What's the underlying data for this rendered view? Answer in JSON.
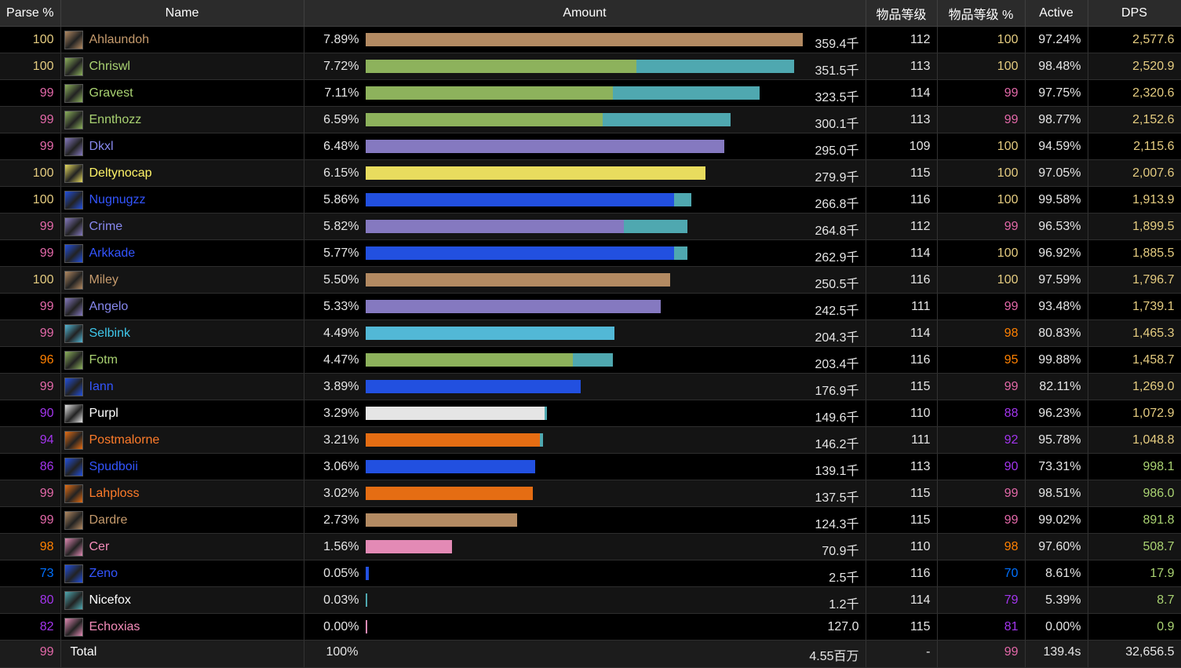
{
  "headers": {
    "parse": "Parse %",
    "name": "Name",
    "amount": "Amount",
    "ilvl": "物品等级",
    "ilvl_pct": "物品等级 %",
    "active": "Active",
    "dps": "DPS"
  },
  "colors": {
    "parse_orange": "#ff8000",
    "parse_gold": "#e5cc80",
    "parse_pink": "#e268a8",
    "parse_purple": "#a335ee",
    "parse_blue": "#0070ff",
    "warrior": "#C69B6D",
    "hunter": "#AAD372",
    "demon_hunter": "#A330C9",
    "rogue": "#FFF468",
    "mage": "#3FC7EB",
    "warlock": "#8788EE",
    "shaman": "#0070DD",
    "priest": "#FFFFFF",
    "monk": "#00FF98",
    "paladin": "#F48CBA",
    "pet_bar": "#4fa8b0"
  },
  "rows": [
    {
      "parse": "100",
      "name": "Ahlaundoh",
      "pct": "7.89%",
      "amount": "359.4千",
      "ilvl": "112",
      "ilvl_pct": "100",
      "active": "97.24%",
      "dps": "2,577.6",
      "icon": "warrior-fury-icon",
      "cls": "#C69B6D",
      "bar": "#b38a62",
      "main": 1.0,
      "pet": 0,
      "pc": "#e5cc80",
      "ic": "#e5cc80",
      "dc": "#e5cc80"
    },
    {
      "parse": "100",
      "name": "Chriswl",
      "pct": "7.72%",
      "amount": "351.5千",
      "ilvl": "113",
      "ilvl_pct": "100",
      "active": "98.48%",
      "dps": "2,520.9",
      "icon": "hunter-icon",
      "cls": "#AAD372",
      "bar": "#8db25c",
      "main": 0.62,
      "pet": 0.36,
      "pc": "#e5cc80",
      "ic": "#e5cc80",
      "dc": "#e5cc80"
    },
    {
      "parse": "99",
      "name": "Gravest",
      "pct": "7.11%",
      "amount": "323.5千",
      "ilvl": "114",
      "ilvl_pct": "99",
      "active": "97.75%",
      "dps": "2,320.6",
      "icon": "hunter-icon",
      "cls": "#AAD372",
      "bar": "#8db25c",
      "main": 0.565,
      "pet": 0.335,
      "pc": "#e268a8",
      "ic": "#e268a8",
      "dc": "#e5cc80"
    },
    {
      "parse": "99",
      "name": "Ennthozz",
      "pct": "6.59%",
      "amount": "300.1千",
      "ilvl": "113",
      "ilvl_pct": "99",
      "active": "98.77%",
      "dps": "2,152.6",
      "icon": "hunter-icon",
      "cls": "#AAD372",
      "bar": "#8db25c",
      "main": 0.543,
      "pet": 0.292,
      "pc": "#e268a8",
      "ic": "#e268a8",
      "dc": "#e5cc80"
    },
    {
      "parse": "99",
      "name": "Dkxl",
      "pct": "6.48%",
      "amount": "295.0千",
      "ilvl": "109",
      "ilvl_pct": "100",
      "active": "94.59%",
      "dps": "2,115.6",
      "icon": "warlock-icon",
      "cls": "#8788EE",
      "bar": "#8579c0",
      "main": 0.82,
      "pet": 0,
      "pc": "#e268a8",
      "ic": "#e5cc80",
      "dc": "#e5cc80"
    },
    {
      "parse": "100",
      "name": "Deltynocap",
      "pct": "6.15%",
      "amount": "279.9千",
      "ilvl": "115",
      "ilvl_pct": "100",
      "active": "97.05%",
      "dps": "2,007.6",
      "icon": "rogue-icon",
      "cls": "#FFF468",
      "bar": "#e8dc5e",
      "main": 0.778,
      "pet": 0,
      "pc": "#e5cc80",
      "ic": "#e5cc80",
      "dc": "#e5cc80"
    },
    {
      "parse": "100",
      "name": "Nugnugzz",
      "pct": "5.86%",
      "amount": "266.8千",
      "ilvl": "116",
      "ilvl_pct": "100",
      "active": "99.58%",
      "dps": "1,913.9",
      "icon": "shaman-icon",
      "cls": "#3355ff",
      "bar": "#2250e0",
      "main": 0.705,
      "pet": 0.04,
      "pc": "#e5cc80",
      "ic": "#e5cc80",
      "dc": "#e5cc80"
    },
    {
      "parse": "99",
      "name": "Crime",
      "pct": "5.82%",
      "amount": "264.8千",
      "ilvl": "112",
      "ilvl_pct": "99",
      "active": "96.53%",
      "dps": "1,899.5",
      "icon": "warlock-icon",
      "cls": "#8788EE",
      "bar": "#8579c0",
      "main": 0.59,
      "pet": 0.145,
      "pc": "#e268a8",
      "ic": "#e268a8",
      "dc": "#e5cc80"
    },
    {
      "parse": "99",
      "name": "Arkkade",
      "pct": "5.77%",
      "amount": "262.9千",
      "ilvl": "114",
      "ilvl_pct": "100",
      "active": "96.92%",
      "dps": "1,885.5",
      "icon": "shaman-icon",
      "cls": "#3355ff",
      "bar": "#2250e0",
      "main": 0.705,
      "pet": 0.03,
      "pc": "#e268a8",
      "ic": "#e5cc80",
      "dc": "#e5cc80"
    },
    {
      "parse": "100",
      "name": "Miley",
      "pct": "5.50%",
      "amount": "250.5千",
      "ilvl": "116",
      "ilvl_pct": "100",
      "active": "97.59%",
      "dps": "1,796.7",
      "icon": "warrior-arms-icon",
      "cls": "#C69B6D",
      "bar": "#b38a62",
      "main": 0.697,
      "pet": 0,
      "pc": "#e5cc80",
      "ic": "#e5cc80",
      "dc": "#e5cc80"
    },
    {
      "parse": "99",
      "name": "Angelo",
      "pct": "5.33%",
      "amount": "242.5千",
      "ilvl": "111",
      "ilvl_pct": "99",
      "active": "93.48%",
      "dps": "1,739.1",
      "icon": "warlock-icon",
      "cls": "#8788EE",
      "bar": "#8579c0",
      "main": 0.675,
      "pet": 0,
      "pc": "#e268a8",
      "ic": "#e268a8",
      "dc": "#e5cc80"
    },
    {
      "parse": "99",
      "name": "Selbink",
      "pct": "4.49%",
      "amount": "204.3千",
      "ilvl": "114",
      "ilvl_pct": "98",
      "active": "80.83%",
      "dps": "1,465.3",
      "icon": "mage-frost-icon",
      "cls": "#3FC7EB",
      "bar": "#52b8d6",
      "main": 0.569,
      "pet": 0,
      "pc": "#e268a8",
      "ic": "#ff8000",
      "dc": "#e5cc80"
    },
    {
      "parse": "96",
      "name": "Fotm",
      "pct": "4.47%",
      "amount": "203.4千",
      "ilvl": "116",
      "ilvl_pct": "95",
      "active": "99.88%",
      "dps": "1,458.7",
      "icon": "hunter-bm-icon",
      "cls": "#AAD372",
      "bar": "#8db25c",
      "main": 0.474,
      "pet": 0.092,
      "pc": "#ff8000",
      "ic": "#ff8000",
      "dc": "#e5cc80"
    },
    {
      "parse": "99",
      "name": "Iann",
      "pct": "3.89%",
      "amount": "176.9千",
      "ilvl": "115",
      "ilvl_pct": "99",
      "active": "82.11%",
      "dps": "1,269.0",
      "icon": "shaman-lightning-icon",
      "cls": "#3355ff",
      "bar": "#2250e0",
      "main": 0.492,
      "pet": 0,
      "pc": "#e268a8",
      "ic": "#e268a8",
      "dc": "#e5cc80"
    },
    {
      "parse": "90",
      "name": "Purpl",
      "pct": "3.29%",
      "amount": "149.6千",
      "ilvl": "110",
      "ilvl_pct": "88",
      "active": "96.23%",
      "dps": "1,072.9",
      "icon": "priest-shadow-icon",
      "cls": "#FFFFFF",
      "bar": "#e5e5e5",
      "main": 0.41,
      "pet": 0.006,
      "pc": "#a335ee",
      "ic": "#a335ee",
      "dc": "#e5cc80"
    },
    {
      "parse": "94",
      "name": "Postmalorne",
      "pct": "3.21%",
      "amount": "146.2千",
      "ilvl": "111",
      "ilvl_pct": "92",
      "active": "95.78%",
      "dps": "1,048.8",
      "icon": "mage-arcane-icon",
      "cls": "#ff7c2a",
      "bar": "#e56d13",
      "main": 0.398,
      "pet": 0.008,
      "pc": "#a335ee",
      "ic": "#a335ee",
      "dc": "#e5cc80"
    },
    {
      "parse": "86",
      "name": "Spudboii",
      "pct": "3.06%",
      "amount": "139.1千",
      "ilvl": "113",
      "ilvl_pct": "90",
      "active": "73.31%",
      "dps": "998.1",
      "icon": "shaman-lightning-icon",
      "cls": "#3355ff",
      "bar": "#2250e0",
      "main": 0.388,
      "pet": 0,
      "pc": "#a335ee",
      "ic": "#a335ee",
      "dc": "#aad372"
    },
    {
      "parse": "99",
      "name": "Lahploss",
      "pct": "3.02%",
      "amount": "137.5千",
      "ilvl": "115",
      "ilvl_pct": "99",
      "active": "98.51%",
      "dps": "986.0",
      "icon": "mage-fire-icon",
      "cls": "#ff7c2a",
      "bar": "#e56d13",
      "main": 0.383,
      "pet": 0,
      "pc": "#e268a8",
      "ic": "#e268a8",
      "dc": "#aad372"
    },
    {
      "parse": "99",
      "name": "Dardre",
      "pct": "2.73%",
      "amount": "124.3千",
      "ilvl": "115",
      "ilvl_pct": "99",
      "active": "99.02%",
      "dps": "891.8",
      "icon": "warrior-prot-icon",
      "cls": "#C69B6D",
      "bar": "#b38a62",
      "main": 0.346,
      "pet": 0,
      "pc": "#e268a8",
      "ic": "#e268a8",
      "dc": "#aad372"
    },
    {
      "parse": "98",
      "name": "Cer",
      "pct": "1.56%",
      "amount": "70.9千",
      "ilvl": "110",
      "ilvl_pct": "98",
      "active": "97.60%",
      "dps": "508.7",
      "icon": "paladin-holy-icon",
      "cls": "#F48CBA",
      "bar": "#e38ab5",
      "main": 0.198,
      "pet": 0,
      "pc": "#ff8000",
      "ic": "#ff8000",
      "dc": "#aad372"
    },
    {
      "parse": "73",
      "name": "Zeno",
      "pct": "0.05%",
      "amount": "2.5千",
      "ilvl": "116",
      "ilvl_pct": "70",
      "active": "8.61%",
      "dps": "17.9",
      "icon": "monk-mistweaver-icon",
      "cls": "#3355ff",
      "bar": "#2250e0",
      "main": 0.007,
      "pet": 0,
      "pc": "#0070ff",
      "ic": "#0070ff",
      "dc": "#aad372"
    },
    {
      "parse": "80",
      "name": "Nicefox",
      "pct": "0.03%",
      "amount": "1.2千",
      "ilvl": "114",
      "ilvl_pct": "79",
      "active": "5.39%",
      "dps": "8.7",
      "icon": "shaman-resto-icon",
      "cls": "#FFFFFF",
      "bar": "#4fa8b0",
      "main": 0.004,
      "pet": 0,
      "pc": "#a335ee",
      "ic": "#a335ee",
      "dc": "#aad372"
    },
    {
      "parse": "82",
      "name": "Echoxias",
      "pct": "0.00%",
      "amount": "127.0",
      "ilvl": "115",
      "ilvl_pct": "81",
      "active": "0.00%",
      "dps": "0.9",
      "icon": "priest-holy-icon",
      "cls": "#F48CBA",
      "bar": "#e38ab5",
      "main": 0.002,
      "pet": 0,
      "pc": "#a335ee",
      "ic": "#a335ee",
      "dc": "#aad372"
    }
  ],
  "total": {
    "parse": "99",
    "name": "Total",
    "pct": "100%",
    "amount": "4.55百万",
    "ilvl": "-",
    "ilvl_pct": "99",
    "active": "139.4s",
    "dps": "32,656.5"
  }
}
